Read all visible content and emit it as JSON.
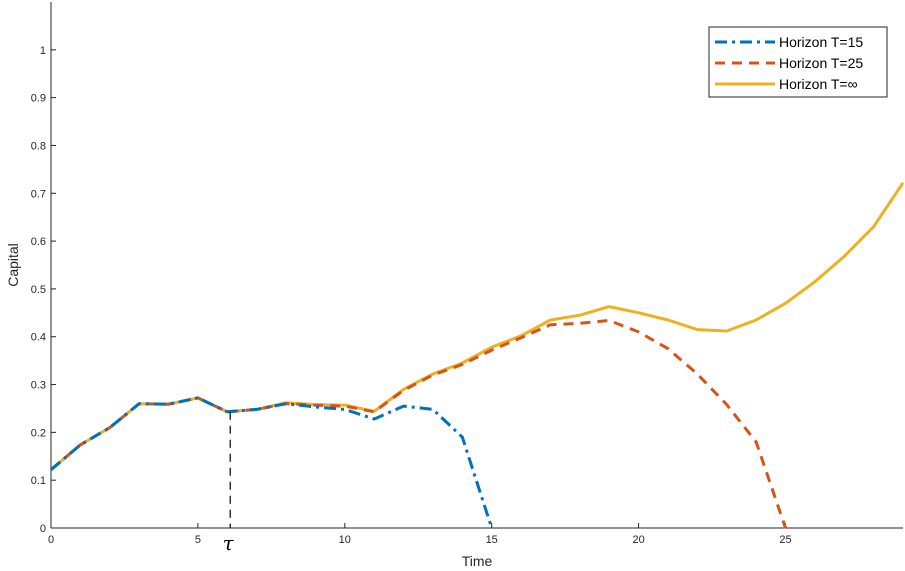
{
  "chart_data": {
    "type": "line",
    "title": "",
    "xlabel": "Time",
    "ylabel": "Capital",
    "xlim": [
      0,
      29
    ],
    "ylim": [
      0,
      1.1
    ],
    "xticks": [
      0,
      5,
      10,
      15,
      20,
      25
    ],
    "yticks": [
      0,
      0.1,
      0.2,
      0.3,
      0.4,
      0.5,
      0.6,
      0.7,
      0.8,
      0.9,
      1
    ],
    "legend_position": "top-right",
    "grid": false,
    "annotation": {
      "label": "τ",
      "x": 6.1,
      "y_top": 0.243
    },
    "series": [
      {
        "name": "Horizon T=15",
        "color": "#0072BD",
        "style": "dashdot",
        "x": [
          0,
          1,
          2,
          3,
          4,
          5,
          6,
          7,
          8,
          9,
          10,
          11,
          12,
          13,
          14,
          15
        ],
        "values": [
          0.122,
          0.174,
          0.21,
          0.26,
          0.259,
          0.272,
          0.243,
          0.248,
          0.26,
          0.253,
          0.248,
          0.228,
          0.255,
          0.248,
          0.19,
          0.0
        ]
      },
      {
        "name": "Horizon T=25",
        "color": "#D95319",
        "style": "dashed",
        "x": [
          0,
          1,
          2,
          3,
          4,
          5,
          6,
          7,
          8,
          9,
          10,
          11,
          12,
          13,
          14,
          15,
          16,
          17,
          18,
          19,
          20,
          21,
          22,
          23,
          24,
          25
        ],
        "values": [
          0.122,
          0.174,
          0.21,
          0.26,
          0.259,
          0.272,
          0.243,
          0.248,
          0.26,
          0.257,
          0.255,
          0.243,
          0.288,
          0.32,
          0.342,
          0.372,
          0.398,
          0.425,
          0.428,
          0.434,
          0.41,
          0.375,
          0.322,
          0.258,
          0.18,
          0.0
        ]
      },
      {
        "name": "Horizon T=∞",
        "color": "#EDB120",
        "style": "solid",
        "x": [
          0,
          1,
          2,
          3,
          4,
          5,
          6,
          7,
          8,
          9,
          10,
          11,
          12,
          13,
          14,
          15,
          16,
          17,
          18,
          19,
          20,
          21,
          22,
          23,
          24,
          25,
          26,
          27,
          28,
          29
        ],
        "values": [
          0.122,
          0.174,
          0.21,
          0.26,
          0.259,
          0.272,
          0.243,
          0.248,
          0.262,
          0.258,
          0.257,
          0.244,
          0.29,
          0.322,
          0.345,
          0.378,
          0.402,
          0.435,
          0.445,
          0.463,
          0.45,
          0.435,
          0.415,
          0.412,
          0.435,
          0.47,
          0.515,
          0.568,
          0.63,
          0.722
        ]
      }
    ]
  }
}
